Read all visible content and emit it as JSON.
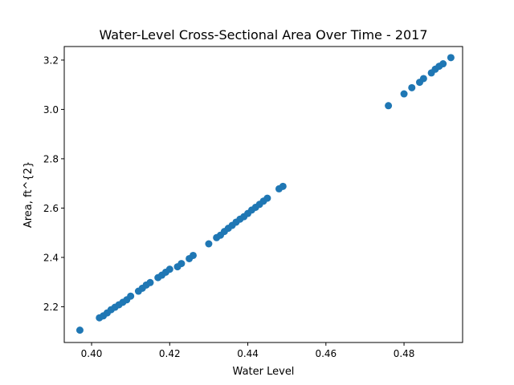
{
  "chart_data": {
    "type": "scatter",
    "title": "Water-Level Cross-Sectional Area Over Time - 2017",
    "xlabel": "Water Level",
    "ylabel": "Area, ft^{2}",
    "xlim": [
      0.393,
      0.495
    ],
    "ylim": [
      2.055,
      3.255
    ],
    "xticks": [
      {
        "value": 0.4,
        "label": "0.40"
      },
      {
        "value": 0.42,
        "label": "0.42"
      },
      {
        "value": 0.44,
        "label": "0.44"
      },
      {
        "value": 0.46,
        "label": "0.46"
      },
      {
        "value": 0.48,
        "label": "0.48"
      }
    ],
    "yticks": [
      {
        "value": 2.2,
        "label": "2.2"
      },
      {
        "value": 2.4,
        "label": "2.4"
      },
      {
        "value": 2.6,
        "label": "2.6"
      },
      {
        "value": 2.8,
        "label": "2.8"
      },
      {
        "value": 3.0,
        "label": "3.0"
      },
      {
        "value": 3.2,
        "label": "3.2"
      }
    ],
    "grid": false,
    "marker_color": "#1f77b4",
    "series": [
      {
        "points": [
          [
            0.397,
            2.105
          ],
          [
            0.402,
            2.155
          ],
          [
            0.403,
            2.163
          ],
          [
            0.404,
            2.175
          ],
          [
            0.405,
            2.188
          ],
          [
            0.406,
            2.198
          ],
          [
            0.407,
            2.208
          ],
          [
            0.408,
            2.218
          ],
          [
            0.409,
            2.228
          ],
          [
            0.41,
            2.243
          ],
          [
            0.412,
            2.263
          ],
          [
            0.413,
            2.275
          ],
          [
            0.414,
            2.288
          ],
          [
            0.415,
            2.298
          ],
          [
            0.417,
            2.318
          ],
          [
            0.418,
            2.328
          ],
          [
            0.419,
            2.34
          ],
          [
            0.42,
            2.352
          ],
          [
            0.422,
            2.362
          ],
          [
            0.423,
            2.375
          ],
          [
            0.425,
            2.395
          ],
          [
            0.426,
            2.408
          ],
          [
            0.43,
            2.455
          ],
          [
            0.432,
            2.48
          ],
          [
            0.433,
            2.49
          ],
          [
            0.434,
            2.505
          ],
          [
            0.435,
            2.518
          ],
          [
            0.436,
            2.53
          ],
          [
            0.437,
            2.543
          ],
          [
            0.438,
            2.555
          ],
          [
            0.439,
            2.565
          ],
          [
            0.44,
            2.578
          ],
          [
            0.441,
            2.592
          ],
          [
            0.442,
            2.603
          ],
          [
            0.443,
            2.615
          ],
          [
            0.444,
            2.628
          ],
          [
            0.445,
            2.64
          ],
          [
            0.448,
            2.678
          ],
          [
            0.449,
            2.688
          ],
          [
            0.476,
            3.015
          ],
          [
            0.48,
            3.063
          ],
          [
            0.482,
            3.088
          ],
          [
            0.484,
            3.11
          ],
          [
            0.485,
            3.125
          ],
          [
            0.487,
            3.148
          ],
          [
            0.488,
            3.163
          ],
          [
            0.489,
            3.175
          ],
          [
            0.49,
            3.185
          ],
          [
            0.492,
            3.21
          ]
        ]
      }
    ]
  }
}
